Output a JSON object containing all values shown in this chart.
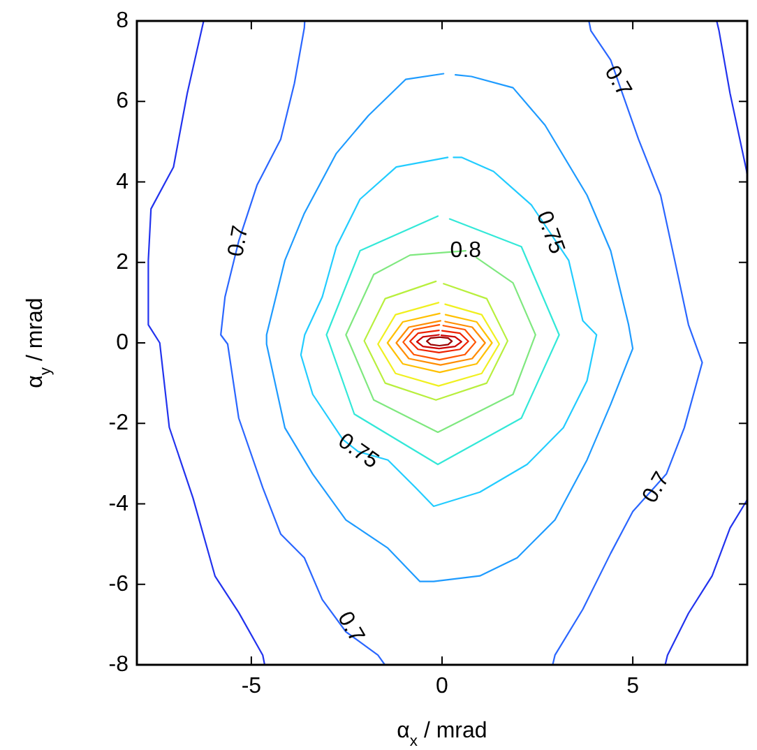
{
  "chart_data": {
    "type": "line",
    "xlabel": "α$_{x}$ / mrad",
    "ylabel": "α$_{y}$ / mrad",
    "xlim": [
      -8,
      8
    ],
    "ylim": [
      -8,
      8
    ],
    "xticks": [
      -5,
      0,
      5
    ],
    "yticks": [
      -8,
      -6,
      -4,
      -2,
      0,
      2,
      4,
      6,
      8
    ],
    "marker": "none",
    "line_style": "solid",
    "series": [
      {
        "color": "#2233ee",
        "x": [
          -6.25,
          -6.68,
          -7.04,
          -7.63,
          -7.7,
          -7.7,
          -7.4,
          -7.15,
          -6.53,
          -5.95,
          -5.33,
          -4.7,
          -4.65
        ],
        "values": [
          8,
          6.2,
          4.37,
          3.33,
          2.05,
          0.45,
          0,
          -2.1,
          -3.85,
          -5.8,
          -6.7,
          -7.76,
          -8
        ]
      },
      {
        "color": "#2233ee",
        "x": [
          7.2,
          7.26,
          7.55,
          8
        ],
        "values": [
          8,
          7.76,
          6.2,
          4.2
        ]
      },
      {
        "color": "#2233ee",
        "x": [
          8,
          7.55,
          7.08,
          6.46,
          5.91,
          5.85
        ],
        "values": [
          -3.9,
          -4.6,
          -5.79,
          -6.72,
          -7.76,
          -8
        ]
      },
      {
        "color": "#2a66ff",
        "x": [
          -3.6,
          -3.61,
          -3.87,
          -4.23,
          -4.85,
          -5.33,
          -5.69,
          -5.8,
          -5.62,
          -5.33,
          -4.7,
          -4.23,
          -3.61,
          -3.14,
          -2.52,
          -1.68,
          -1.5
        ],
        "values": [
          8,
          7.83,
          6.45,
          5.06,
          3.92,
          2.53,
          1.14,
          0.2,
          -0.03,
          -1.87,
          -3.6,
          -4.75,
          -5.34,
          -6.38,
          -7.18,
          -7.76,
          -8
        ]
      },
      {
        "color": "#2a66ff",
        "x": [
          3.85,
          3.9,
          4.42,
          5.15,
          5.73,
          6.1,
          6.46,
          6.82,
          6.35,
          5.88,
          5,
          4.42,
          3.69,
          2.96,
          2.9
        ],
        "values": [
          8,
          7.76,
          7.03,
          5.06,
          3.67,
          2.05,
          0.45,
          -0.49,
          -2.11,
          -3.26,
          -4.19,
          -5.23,
          -6.62,
          -7.76,
          -8
        ]
      },
      {
        "color": "#1e9bff",
        "x": [
          0.04,
          -0.95,
          -1.93,
          -2.77,
          -3.61,
          -4.12,
          -4.6,
          -4.6,
          -4.12,
          -3.39,
          -2.52,
          -1.42,
          -0.58,
          -0.22,
          0.99,
          1.97,
          2.96,
          3.8,
          4.42,
          5,
          4.89,
          4.42,
          3.8,
          2.7,
          1.86,
          0.77,
          0.35
        ],
        "values": [
          6.69,
          6.55,
          5.65,
          4.71,
          3.22,
          2.05,
          0.2,
          -0.03,
          -2.11,
          -3.26,
          -4.4,
          -5.1,
          -5.93,
          -5.93,
          -5.79,
          -5.34,
          -4.4,
          -2.91,
          -1.53,
          -0.14,
          0.45,
          2.29,
          3.67,
          5.41,
          6.34,
          6.62,
          6.66
        ]
      },
      {
        "color": "#22ccff",
        "x": [
          0.15,
          -1.2,
          -2.15,
          -2.77,
          -3.14,
          -3.6,
          -3.7,
          -3.39,
          -2.6,
          -2.2,
          -1.42,
          -0.69,
          -0.22,
          0.99,
          2.23,
          3.18,
          3.8,
          4.05,
          3.69,
          3.32,
          2.34,
          1.35,
          0.51,
          0.3
        ],
        "values": [
          4.61,
          4.37,
          3.57,
          2.39,
          1.14,
          0.2,
          -0.3,
          -1.28,
          -2.4,
          -2.7,
          -2.91,
          -3.6,
          -4.06,
          -3.71,
          -3.02,
          -2.11,
          -0.94,
          0.2,
          0.55,
          2.05,
          3.43,
          4.26,
          4.61,
          4.61
        ]
      },
      {
        "color": "#33e8d8",
        "x": [
          -0.11,
          -2.15,
          -3.03,
          -2.3,
          -0.11,
          2.08,
          3.07,
          2.08,
          0.2
        ],
        "values": [
          3.15,
          2.29,
          0.2,
          -1.77,
          -3.02,
          -1.87,
          0.2,
          2.39,
          3.08
        ]
      },
      {
        "color": "#7fe87f",
        "x": [
          0.62,
          -0.84,
          -1.79,
          -2.52,
          -1.79,
          -0.11,
          1.86,
          2.45,
          1.86,
          0.9
        ],
        "values": [
          2.29,
          2.18,
          1.7,
          0.2,
          -1.42,
          -2.22,
          -1.28,
          0.2,
          1.49,
          2.12
        ]
      },
      {
        "color": "#b8ef3d",
        "x": [
          -0.16,
          -1.49,
          -2.04,
          -1.49,
          -0.16,
          1.17,
          1.72,
          1.17,
          0.04
        ],
        "values": [
          1.53,
          1.1,
          0.05,
          -1.0,
          -1.42,
          -1.0,
          0.05,
          1.1,
          1.47
        ]
      },
      {
        "color": "#f0f020",
        "x": [
          -0.09,
          -1.22,
          -1.68,
          -1.22,
          -0.09,
          1.04,
          1.5,
          1.04,
          0.08
        ],
        "values": [
          1.0,
          0.7,
          -0.03,
          -0.76,
          -1.07,
          -0.76,
          -0.03,
          0.7,
          0.96
        ]
      },
      {
        "color": "#ffc000",
        "x": [
          -0.06,
          -1.03,
          -1.43,
          -1.03,
          -0.06,
          0.91,
          1.31,
          0.91,
          0.09
        ],
        "values": [
          0.73,
          0.52,
          0,
          -0.52,
          -0.73,
          -0.52,
          0,
          0.52,
          0.7
        ]
      },
      {
        "color": "#ff8c00",
        "x": [
          -0.04,
          -0.87,
          -1.2,
          -0.87,
          -0.04,
          0.79,
          1.13,
          0.79,
          0.08
        ],
        "values": [
          0.55,
          0.39,
          0,
          -0.39,
          -0.55,
          -0.39,
          0,
          0.39,
          0.53
        ]
      },
      {
        "color": "#ff5500",
        "x": [
          -0.07,
          -0.74,
          -1.02,
          -0.74,
          -0.07,
          0.6,
          0.88,
          0.6,
          0.03
        ],
        "values": [
          0.45,
          0.33,
          0.02,
          -0.29,
          -0.42,
          -0.29,
          0.02,
          0.33,
          0.43
        ]
      },
      {
        "color": "#ee2200",
        "x": [
          -0.08,
          -0.63,
          -0.84,
          -0.63,
          -0.08,
          0.47,
          0.69,
          0.47,
          0
        ],
        "values": [
          0.31,
          0.24,
          0.04,
          -0.16,
          -0.24,
          -0.16,
          0.04,
          0.24,
          0.3
        ]
      },
      {
        "color": "#cc0000",
        "x": [
          -0.08,
          -0.5,
          -0.66,
          -0.5,
          -0.08,
          0.34,
          0.51,
          0.34,
          -0.02
        ],
        "values": [
          0.2,
          0.15,
          0.03,
          -0.09,
          -0.14,
          -0.09,
          0.03,
          0.15,
          0.19
        ]
      },
      {
        "color": "#990000",
        "x": [
          -0.07,
          -0.3,
          -0.4,
          -0.3,
          -0.07,
          0.16,
          0.26,
          0.16,
          -0.04
        ],
        "values": [
          0.14,
          0.12,
          0.04,
          -0.04,
          -0.07,
          -0.04,
          0.04,
          0.12,
          0.14
        ]
      }
    ],
    "annotations": [
      {
        "text": "0.7",
        "x": -5.33,
        "y": 2.53
      },
      {
        "text": "0.7",
        "x": 4.6,
        "y": 6.5
      },
      {
        "text": "0.7",
        "x": 5.62,
        "y": -3.6
      },
      {
        "text": "0.7",
        "x": -2.4,
        "y": -7.07
      },
      {
        "text": "0.75",
        "x": 2.83,
        "y": 2.74
      },
      {
        "text": "0.75",
        "x": -2.2,
        "y": -2.7
      },
      {
        "text": "0.8",
        "x": 0.62,
        "y": 2.29
      }
    ]
  }
}
